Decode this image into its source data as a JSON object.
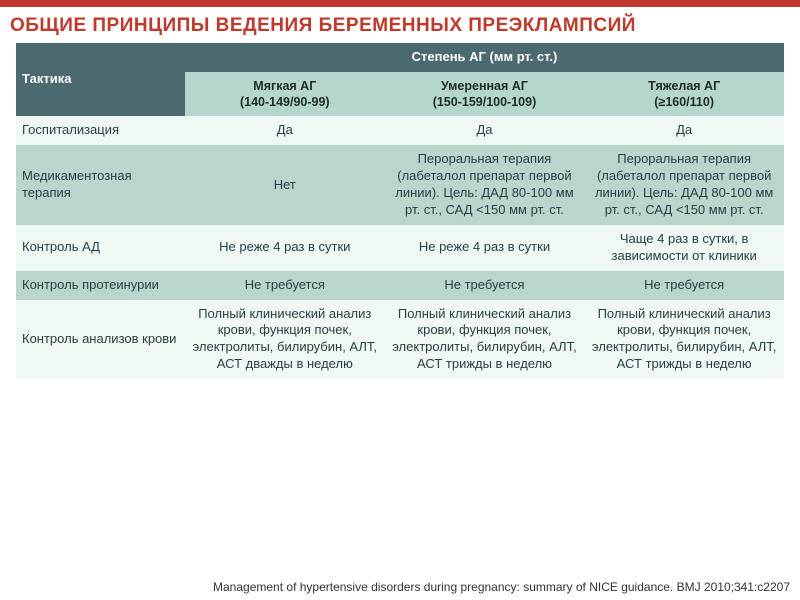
{
  "title": "ОБЩИЕ ПРИНЦИПЫ ВЕДЕНИЯ БЕРЕМЕННЫХ ПРЕЭКЛАМПСИЙ",
  "header": {
    "tactic": "Тактика",
    "severity_group": "Степень АГ (мм рт. ст.)",
    "mild": {
      "label": "Мягкая АГ",
      "range": "(140-149/90-99)"
    },
    "moderate": {
      "label": "Умеренная АГ",
      "range": "(150-159/100-109)"
    },
    "severe": {
      "label": "Тяжелая АГ",
      "range": "(≥160/110)"
    }
  },
  "rows": {
    "hosp": {
      "label": "Госпитализация",
      "mild": "Да",
      "moderate": "Да",
      "severe": "Да"
    },
    "med": {
      "label": "Медикаментозная терапия",
      "mild": "Нет",
      "moderate": "Пероральная терапия (лабеталол препарат первой линии). Цель: ДАД 80-100 мм рт. ст., САД <150 мм рт. ст.",
      "severe": "Пероральная терапия (лабеталол препарат первой линии). Цель: ДАД 80-100 мм рт. ст., САД <150 мм рт. ст."
    },
    "bp": {
      "label": "Контроль АД",
      "mild": "Не реже 4 раз в сутки",
      "moderate": "Не реже 4 раз в сутки",
      "severe": "Чаще 4 раз в сутки, в зависимости от клиники"
    },
    "prot": {
      "label": "Контроль протеинурии",
      "mild": "Не требуется",
      "moderate": "Не требуется",
      "severe": "Не требуется"
    },
    "blood": {
      "label": "Контроль анализов крови",
      "mild": "Полный клинический анализ крови, функция почек, электролиты, билирубин, АЛТ, АСТ дважды в неделю",
      "moderate": "Полный клинический анализ крови, функция почек, электролиты, билирубин, АЛТ, АСТ трижды в неделю",
      "severe": "Полный клинический анализ крови, функция почек, электролиты, билирубин, АЛТ, АСТ трижды в неделю"
    }
  },
  "citation": "Management of hypertensive disorders during pregnancy: summary of NICE guidance. BMJ 2010;341:c2207",
  "colors": {
    "accent": "#c0392b",
    "header_bg": "#4a6a70",
    "subheader_bg": "#b4d6cc",
    "row_light": "#f0f8f4",
    "row_green": "#b8d6cc",
    "text_dark": "#274044"
  }
}
